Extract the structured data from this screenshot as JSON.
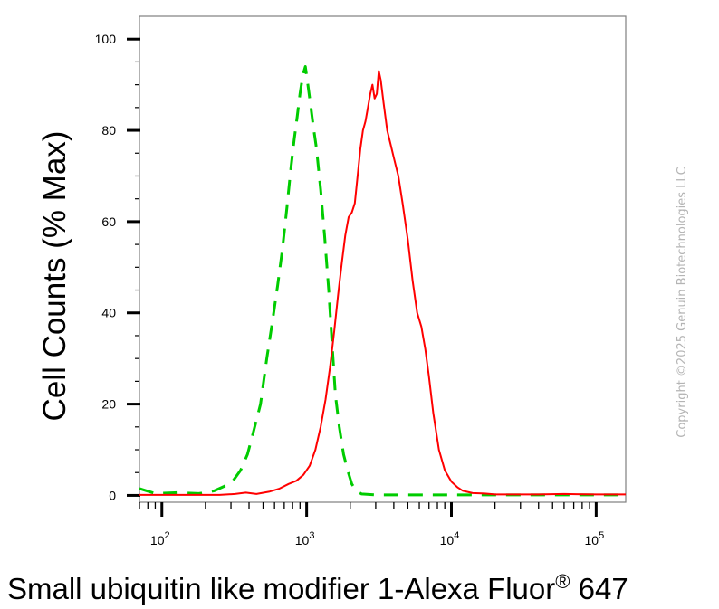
{
  "chart_data": {
    "type": "line",
    "title": "",
    "xlabel": "Small ubiquitin like modifier 1-Alexa Fluor",
    "xlabel_superscript": "®",
    "xlabel_suffix": " 647",
    "ylabel": "Cell Counts (% Max)",
    "x_scale": "log",
    "xlim": [
      70,
      160000
    ],
    "ylim": [
      -1.5,
      105
    ],
    "y_ticks": [
      0,
      20,
      40,
      60,
      80,
      100
    ],
    "y_tick_labels": [
      "0",
      "20",
      "40",
      "60",
      "80",
      "100"
    ],
    "x_ticks": [
      {
        "value": 100,
        "base": "10",
        "exp": "2"
      },
      {
        "value": 1000,
        "base": "10",
        "exp": "3"
      },
      {
        "value": 10000,
        "base": "10",
        "exp": "4"
      },
      {
        "value": 100000,
        "base": "10",
        "exp": "5"
      }
    ],
    "grid": false,
    "series": [
      {
        "style": "dashed",
        "color": "#00cc00",
        "points": [
          [
            70,
            1.5
          ],
          [
            90,
            0.4
          ],
          [
            130,
            0.6
          ],
          [
            180,
            0.4
          ],
          [
            230,
            1.0
          ],
          [
            270,
            2.0
          ],
          [
            310,
            3.2
          ],
          [
            350,
            5.5
          ],
          [
            390,
            9.0
          ],
          [
            430,
            14
          ],
          [
            480,
            20
          ],
          [
            530,
            30
          ],
          [
            580,
            38
          ],
          [
            630,
            46
          ],
          [
            680,
            54
          ],
          [
            730,
            63
          ],
          [
            780,
            72
          ],
          [
            820,
            78
          ],
          [
            860,
            83
          ],
          [
            900,
            88
          ],
          [
            940,
            92
          ],
          [
            980,
            94
          ],
          [
            1020,
            90
          ],
          [
            1060,
            86
          ],
          [
            1110,
            81
          ],
          [
            1170,
            76
          ],
          [
            1250,
            67
          ],
          [
            1330,
            57
          ],
          [
            1420,
            45
          ],
          [
            1500,
            33
          ],
          [
            1580,
            22
          ],
          [
            1680,
            15
          ],
          [
            1800,
            9
          ],
          [
            1920,
            5.5
          ],
          [
            2050,
            2.5
          ],
          [
            2200,
            1.0
          ],
          [
            2400,
            0.3
          ],
          [
            3000,
            0.1
          ],
          [
            10000,
            0.1
          ],
          [
            160000,
            0.1
          ]
        ]
      },
      {
        "style": "solid",
        "color": "#ff0000",
        "points": [
          [
            70,
            0.1
          ],
          [
            250,
            0.1
          ],
          [
            320,
            0.3
          ],
          [
            380,
            0.6
          ],
          [
            450,
            0.3
          ],
          [
            550,
            0.8
          ],
          [
            650,
            1.5
          ],
          [
            750,
            2.5
          ],
          [
            850,
            3.2
          ],
          [
            950,
            4.5
          ],
          [
            1050,
            6.5
          ],
          [
            1150,
            10
          ],
          [
            1250,
            15
          ],
          [
            1350,
            21
          ],
          [
            1450,
            28
          ],
          [
            1550,
            36
          ],
          [
            1650,
            44
          ],
          [
            1750,
            51
          ],
          [
            1850,
            57
          ],
          [
            1950,
            61
          ],
          [
            2050,
            62
          ],
          [
            2150,
            64
          ],
          [
            2250,
            70
          ],
          [
            2350,
            76
          ],
          [
            2450,
            80
          ],
          [
            2550,
            82
          ],
          [
            2650,
            85
          ],
          [
            2750,
            88
          ],
          [
            2850,
            90
          ],
          [
            2950,
            87
          ],
          [
            3050,
            88
          ],
          [
            3150,
            93
          ],
          [
            3250,
            91
          ],
          [
            3400,
            86
          ],
          [
            3600,
            80
          ],
          [
            3800,
            77
          ],
          [
            4000,
            74
          ],
          [
            4300,
            70
          ],
          [
            4600,
            64
          ],
          [
            5000,
            56
          ],
          [
            5400,
            47
          ],
          [
            5800,
            40
          ],
          [
            6200,
            37
          ],
          [
            6600,
            32
          ],
          [
            7000,
            26
          ],
          [
            7500,
            18
          ],
          [
            8200,
            10
          ],
          [
            9000,
            5.5
          ],
          [
            10000,
            3.0
          ],
          [
            11000,
            1.8
          ],
          [
            12000,
            1.0
          ],
          [
            14000,
            0.5
          ],
          [
            17000,
            0.4
          ],
          [
            20000,
            0.2
          ],
          [
            40000,
            0.2
          ],
          [
            60000,
            0.3
          ],
          [
            100000,
            0.2
          ],
          [
            160000,
            0.2
          ]
        ]
      }
    ]
  },
  "watermark": "Copyright ©2025 Genuin Biotechnologies LLC"
}
